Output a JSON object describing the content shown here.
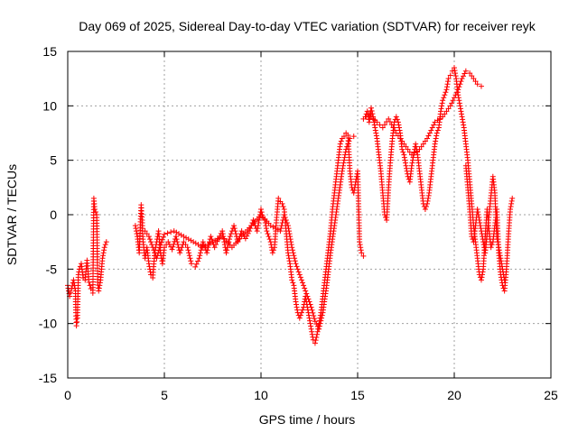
{
  "chart_data": {
    "type": "scatter",
    "title": "Day 069 of 2025, Sidereal Day-to-day VTEC variation (SDTVAR) for receiver reyk",
    "xlabel": "GPS time / hours",
    "ylabel": "SDTVAR / TECUs",
    "xlim": [
      0,
      25
    ],
    "ylim": [
      -15,
      15
    ],
    "xticks": [
      0,
      5,
      10,
      15,
      20,
      25
    ],
    "yticks": [
      -15,
      -10,
      -5,
      0,
      5,
      10,
      15
    ],
    "grid": true,
    "marker": "+",
    "color": "#ff0000",
    "series": [
      {
        "name": "SDTVAR",
        "segments": [
          [
            [
              0.0,
              -6.5
            ],
            [
              0.1,
              -7.5
            ],
            [
              0.2,
              -6.8
            ],
            [
              0.3,
              -6.0
            ],
            [
              0.4,
              -7.0
            ],
            [
              0.42,
              -9.0
            ],
            [
              0.45,
              -10.2
            ],
            [
              0.5,
              -9.5
            ],
            [
              0.55,
              -5.5
            ],
            [
              0.6,
              -5.0
            ],
            [
              0.7,
              -4.5
            ],
            [
              0.8,
              -5.8
            ],
            [
              0.9,
              -6.0
            ],
            [
              1.0,
              -4.2
            ],
            [
              1.1,
              -6.2
            ],
            [
              1.2,
              -6.8
            ],
            [
              1.3,
              -7.2
            ],
            [
              1.35,
              1.5
            ],
            [
              1.4,
              0.5
            ],
            [
              1.5,
              0.0
            ],
            [
              1.55,
              -6.2
            ],
            [
              1.6,
              -7.0
            ],
            [
              1.7,
              -6.0
            ],
            [
              1.8,
              -4.0
            ],
            [
              1.9,
              -3.0
            ],
            [
              2.0,
              -2.5
            ]
          ],
          [
            [
              3.5,
              -1.0
            ],
            [
              3.6,
              -2.0
            ],
            [
              3.7,
              -3.5
            ],
            [
              3.8,
              0.9
            ],
            [
              3.85,
              -0.5
            ],
            [
              3.9,
              -2.5
            ],
            [
              4.0,
              -4.0
            ],
            [
              4.1,
              -3.0
            ],
            [
              4.2,
              -4.5
            ],
            [
              4.3,
              -5.5
            ],
            [
              4.4,
              -5.8
            ],
            [
              4.5,
              -3.5
            ],
            [
              4.6,
              -2.5
            ],
            [
              4.7,
              -1.5
            ],
            [
              4.8,
              -3.5
            ],
            [
              4.9,
              -4.5
            ],
            [
              5.0,
              -3.0
            ],
            [
              5.2,
              -2.5
            ],
            [
              5.4,
              -3.2
            ],
            [
              5.6,
              -2.0
            ],
            [
              5.8,
              -3.5
            ],
            [
              6.0,
              -2.5
            ],
            [
              6.2,
              -3.0
            ],
            [
              6.4,
              -4.5
            ],
            [
              6.6,
              -4.8
            ],
            [
              6.8,
              -4.0
            ],
            [
              7.0,
              -2.5
            ],
            [
              7.2,
              -3.5
            ],
            [
              7.4,
              -2.0
            ],
            [
              7.6,
              -3.0
            ],
            [
              7.8,
              -2.2
            ],
            [
              8.0,
              -1.5
            ],
            [
              8.2,
              -3.5
            ],
            [
              8.4,
              -2.0
            ],
            [
              8.6,
              -1.0
            ],
            [
              8.8,
              -2.5
            ],
            [
              9.0,
              -1.5
            ],
            [
              9.2,
              -2.2
            ],
            [
              9.4,
              -1.5
            ],
            [
              9.6,
              -0.5
            ],
            [
              9.8,
              -1.5
            ],
            [
              10.0,
              0.5
            ],
            [
              10.1,
              -0.3
            ],
            [
              10.2,
              -0.5
            ],
            [
              10.3,
              -1.5
            ],
            [
              10.4,
              -2.0
            ],
            [
              10.5,
              -2.5
            ],
            [
              10.6,
              -3.5
            ],
            [
              10.7,
              -3.0
            ],
            [
              10.8,
              -0.5
            ],
            [
              10.9,
              1.5
            ],
            [
              11.0,
              1.2
            ],
            [
              11.1,
              1.0
            ],
            [
              11.2,
              0.5
            ],
            [
              11.3,
              -1.5
            ],
            [
              11.4,
              -3.5
            ],
            [
              11.5,
              -4.5
            ],
            [
              11.6,
              -6.0
            ],
            [
              11.7,
              -6.5
            ],
            [
              11.8,
              -8.0
            ],
            [
              11.9,
              -9.0
            ],
            [
              12.0,
              -9.5
            ],
            [
              12.1,
              -9.0
            ],
            [
              12.2,
              -8.5
            ],
            [
              12.3,
              -7.5
            ],
            [
              12.4,
              -8.5
            ],
            [
              12.5,
              -9.5
            ],
            [
              12.6,
              -10.5
            ],
            [
              12.7,
              -11.5
            ],
            [
              12.8,
              -11.8
            ],
            [
              12.9,
              -11.0
            ],
            [
              13.0,
              -10.0
            ],
            [
              13.1,
              -9.0
            ],
            [
              13.2,
              -7.5
            ],
            [
              13.3,
              -6.0
            ],
            [
              13.4,
              -4.5
            ],
            [
              13.5,
              -3.0
            ],
            [
              13.6,
              -1.5
            ],
            [
              13.7,
              0.5
            ],
            [
              13.8,
              2.0
            ],
            [
              13.9,
              3.5
            ],
            [
              14.0,
              5.0
            ],
            [
              14.1,
              6.5
            ],
            [
              14.2,
              7.0
            ],
            [
              14.3,
              7.2
            ],
            [
              14.4,
              7.5
            ],
            [
              14.5,
              7.3
            ],
            [
              14.6,
              4.0
            ],
            [
              14.7,
              2.5
            ],
            [
              14.8,
              2.0
            ],
            [
              14.9,
              3.0
            ],
            [
              15.0,
              4.0
            ],
            [
              15.1,
              -2.5
            ],
            [
              15.2,
              -3.5
            ],
            [
              15.3,
              -3.8
            ]
          ],
          [
            [
              4.0,
              -1.5
            ],
            [
              4.2,
              -2.0
            ],
            [
              4.4,
              -3.0
            ],
            [
              4.6,
              -4.0
            ],
            [
              4.8,
              -2.8
            ],
            [
              5.0,
              -1.8
            ],
            [
              5.5,
              -1.5
            ],
            [
              6.0,
              -2.0
            ],
            [
              6.5,
              -2.5
            ],
            [
              7.0,
              -3.0
            ],
            [
              7.5,
              -2.5
            ],
            [
              8.0,
              -2.0
            ],
            [
              8.5,
              -3.0
            ],
            [
              9.0,
              -2.0
            ],
            [
              9.5,
              -1.0
            ],
            [
              10.0,
              0.0
            ],
            [
              10.5,
              -1.0
            ],
            [
              11.0,
              -1.5
            ],
            [
              11.2,
              0.0
            ],
            [
              11.4,
              -1.0
            ],
            [
              11.6,
              -3.0
            ],
            [
              11.8,
              -4.5
            ],
            [
              12.0,
              -5.5
            ],
            [
              12.2,
              -6.5
            ],
            [
              12.4,
              -7.5
            ],
            [
              12.6,
              -8.5
            ],
            [
              12.8,
              -9.8
            ],
            [
              13.0,
              -10.5
            ],
            [
              13.2,
              -9.0
            ],
            [
              13.4,
              -6.5
            ],
            [
              13.6,
              -3.5
            ],
            [
              13.8,
              -1.0
            ],
            [
              14.0,
              1.5
            ],
            [
              14.2,
              4.0
            ],
            [
              14.4,
              6.0
            ],
            [
              14.6,
              7.0
            ],
            [
              14.8,
              7.2
            ]
          ],
          [
            [
              15.4,
              9.0
            ],
            [
              15.5,
              9.5
            ],
            [
              15.6,
              8.5
            ],
            [
              15.7,
              9.8
            ],
            [
              15.8,
              9.0
            ],
            [
              15.9,
              8.0
            ],
            [
              16.0,
              7.0
            ],
            [
              16.1,
              5.5
            ],
            [
              16.2,
              4.0
            ],
            [
              16.3,
              2.0
            ],
            [
              16.4,
              0.0
            ],
            [
              16.5,
              -0.5
            ],
            [
              16.6,
              2.5
            ],
            [
              16.7,
              5.0
            ],
            [
              16.8,
              7.0
            ],
            [
              16.9,
              8.5
            ],
            [
              17.0,
              9.0
            ],
            [
              17.1,
              8.5
            ],
            [
              17.2,
              7.5
            ],
            [
              17.3,
              6.0
            ],
            [
              17.4,
              5.5
            ],
            [
              17.5,
              4.5
            ],
            [
              17.6,
              3.5
            ],
            [
              17.7,
              3.0
            ],
            [
              17.8,
              4.5
            ],
            [
              17.9,
              5.5
            ],
            [
              18.0,
              6.5
            ],
            [
              18.1,
              5.5
            ],
            [
              18.2,
              4.0
            ],
            [
              18.3,
              2.5
            ],
            [
              18.4,
              1.0
            ],
            [
              18.5,
              0.5
            ],
            [
              18.6,
              1.0
            ],
            [
              18.7,
              2.0
            ],
            [
              18.8,
              3.5
            ],
            [
              18.9,
              5.0
            ],
            [
              19.0,
              6.5
            ],
            [
              19.1,
              7.5
            ],
            [
              19.2,
              8.0
            ],
            [
              19.3,
              9.5
            ],
            [
              19.4,
              10.5
            ],
            [
              19.5,
              11.0
            ],
            [
              19.6,
              11.5
            ],
            [
              19.7,
              12.5
            ],
            [
              19.8,
              12.8
            ],
            [
              19.9,
              13.2
            ],
            [
              20.0,
              13.5
            ],
            [
              20.1,
              12.5
            ],
            [
              20.2,
              11.0
            ],
            [
              20.3,
              10.0
            ],
            [
              20.4,
              9.0
            ],
            [
              20.5,
              8.0
            ],
            [
              20.6,
              6.5
            ],
            [
              20.7,
              5.0
            ],
            [
              20.8,
              3.0
            ],
            [
              20.9,
              1.0
            ],
            [
              21.0,
              -1.0
            ],
            [
              21.1,
              -2.5
            ],
            [
              21.2,
              -4.0
            ],
            [
              21.3,
              -5.5
            ],
            [
              21.4,
              -6.0
            ],
            [
              21.5,
              -5.0
            ],
            [
              21.6,
              -2.0
            ],
            [
              21.7,
              0.5
            ],
            [
              21.8,
              -1.5
            ],
            [
              21.9,
              -3.0
            ],
            [
              22.0,
              -2.5
            ],
            [
              22.1,
              -1.0
            ],
            [
              22.2,
              0.5
            ],
            [
              22.3,
              -3.5
            ],
            [
              22.4,
              -5.5
            ],
            [
              22.5,
              -6.5
            ],
            [
              22.6,
              -7.0
            ],
            [
              22.7,
              -5.0
            ],
            [
              22.8,
              -2.0
            ],
            [
              22.9,
              0.5
            ],
            [
              23.0,
              1.5
            ]
          ],
          [
            [
              15.3,
              8.8
            ],
            [
              15.6,
              9.2
            ],
            [
              16.0,
              8.5
            ],
            [
              16.3,
              8.0
            ],
            [
              16.6,
              8.8
            ],
            [
              17.0,
              7.5
            ],
            [
              17.4,
              6.5
            ],
            [
              17.8,
              5.5
            ],
            [
              18.2,
              6.0
            ],
            [
              18.6,
              7.0
            ],
            [
              19.0,
              8.5
            ],
            [
              19.4,
              9.0
            ],
            [
              19.8,
              10.0
            ],
            [
              20.2,
              11.5
            ],
            [
              20.4,
              12.5
            ],
            [
              20.6,
              13.2
            ],
            [
              20.8,
              13.0
            ],
            [
              21.0,
              12.5
            ],
            [
              21.2,
              12.0
            ],
            [
              21.4,
              11.8
            ]
          ],
          [
            [
              20.6,
              4.5
            ],
            [
              20.7,
              2.5
            ],
            [
              20.8,
              0.5
            ],
            [
              20.9,
              -2.0
            ],
            [
              21.0,
              -2.5
            ],
            [
              21.2,
              0.5
            ],
            [
              21.4,
              -1.5
            ],
            [
              21.6,
              -3.5
            ],
            [
              21.8,
              0.0
            ],
            [
              22.0,
              3.5
            ],
            [
              22.1,
              2.0
            ],
            [
              22.2,
              -2.0
            ],
            [
              22.4,
              -4.0
            ],
            [
              22.6,
              -6.0
            ]
          ]
        ]
      }
    ]
  }
}
